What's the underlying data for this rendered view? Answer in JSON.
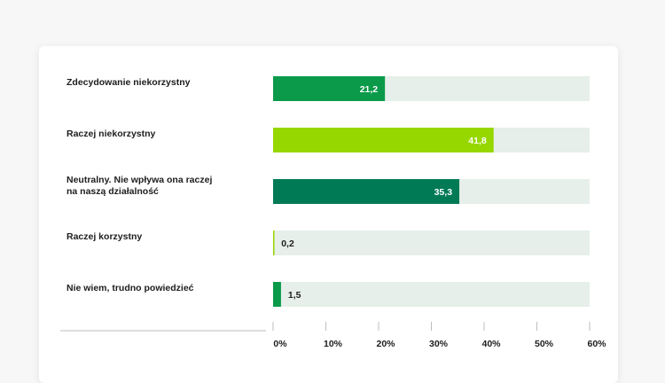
{
  "chart_data": {
    "type": "bar",
    "orientation": "horizontal",
    "categories": [
      [
        "Zdecydowanie niekorzystny"
      ],
      [
        "Raczej niekorzystny"
      ],
      [
        "Neutralny. Nie wpływa ona raczej",
        "na naszą działalność"
      ],
      [
        "Raczej korzystny"
      ],
      [
        "Nie wiem, trudno powiedzieć"
      ]
    ],
    "values": [
      21.2,
      41.8,
      35.3,
      0.2,
      1.5
    ],
    "value_labels": [
      "21,2",
      "41,8",
      "35,3",
      "0,2",
      "1,5"
    ],
    "bar_colors": [
      "#0a9a4a",
      "#97d700",
      "#007a55",
      "#97d700",
      "#0a9a4a"
    ],
    "track_color": "#e6efe9",
    "xlim": [
      0,
      60
    ],
    "xticks": [
      0,
      10,
      20,
      30,
      40,
      50,
      60
    ],
    "xtick_labels": [
      "0%",
      "10%",
      "20%",
      "30%",
      "40%",
      "50%",
      "60%"
    ],
    "grid": false,
    "legend": "none"
  }
}
